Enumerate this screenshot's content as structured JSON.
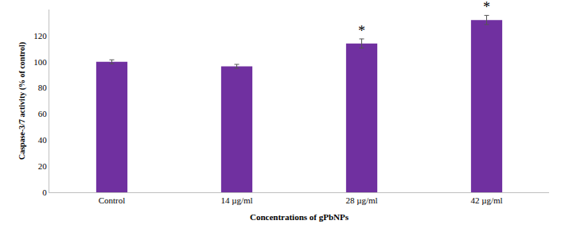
{
  "chart_data": {
    "type": "bar",
    "x_label": "Concentrations of gPbNPs",
    "y_label": "Caspase-3/7 activity (% of control)",
    "categories": [
      "Control",
      "14 µg/ml",
      "28 µg/ml",
      "42 µg/ml"
    ],
    "values": [
      100,
      96.5,
      114,
      132
    ],
    "errors": [
      1.5,
      1.5,
      3.5,
      3.5
    ],
    "color": "#7030a0",
    "ylim": [
      0,
      140
    ],
    "yticks": [
      0,
      20,
      40,
      60,
      80,
      100,
      120
    ],
    "grid": false,
    "annotations": [
      {
        "category": "28 µg/ml",
        "text": "*"
      },
      {
        "category": "42 µg/ml",
        "text": "*"
      }
    ]
  }
}
